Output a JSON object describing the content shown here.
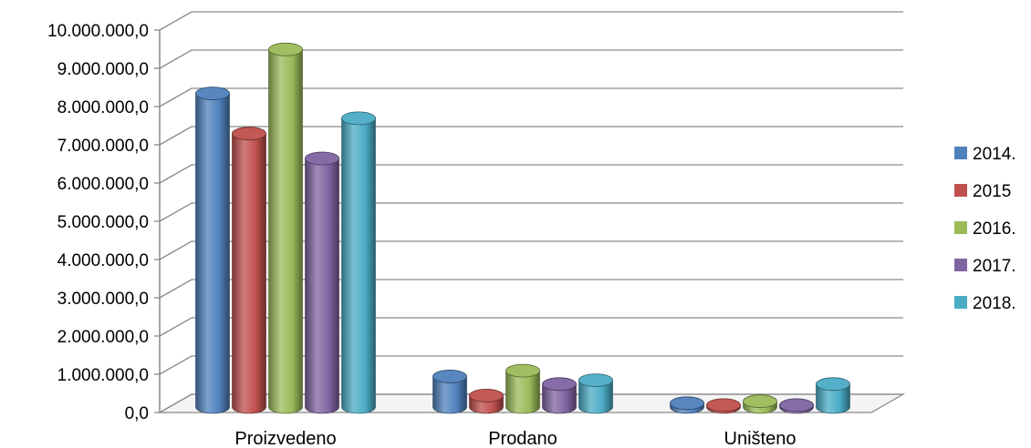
{
  "chart_data": {
    "type": "bar",
    "style": "3d-cylinder",
    "categories": [
      "Proizvedeno",
      "Prodano",
      "Uništeno"
    ],
    "y_tick_labels": [
      "0,0",
      "1.000.000,0",
      "2.000.000,0",
      "3.000.000,0",
      "4.000.000,0",
      "5.000.000,0",
      "6.000.000,0",
      "7.000.000,0",
      "8.000.000,0",
      "9.000.000,0",
      "10.000.000,0"
    ],
    "ylim": [
      0,
      10000000
    ],
    "grid": true,
    "legend_position": "right",
    "series": [
      {
        "name": "2014.",
        "color": "#4F81BD",
        "values": [
          8200000,
          800000,
          100000
        ]
      },
      {
        "name": "2015",
        "color": "#C0504D",
        "values": [
          7150000,
          300000,
          50000
        ]
      },
      {
        "name": "2016.",
        "color": "#9BBB59",
        "values": [
          9350000,
          950000,
          150000
        ]
      },
      {
        "name": "2017.",
        "color": "#8064A2",
        "values": [
          6500000,
          600000,
          50000
        ]
      },
      {
        "name": "2018.",
        "color": "#4BACC6",
        "values": [
          7550000,
          700000,
          600000
        ]
      }
    ]
  }
}
